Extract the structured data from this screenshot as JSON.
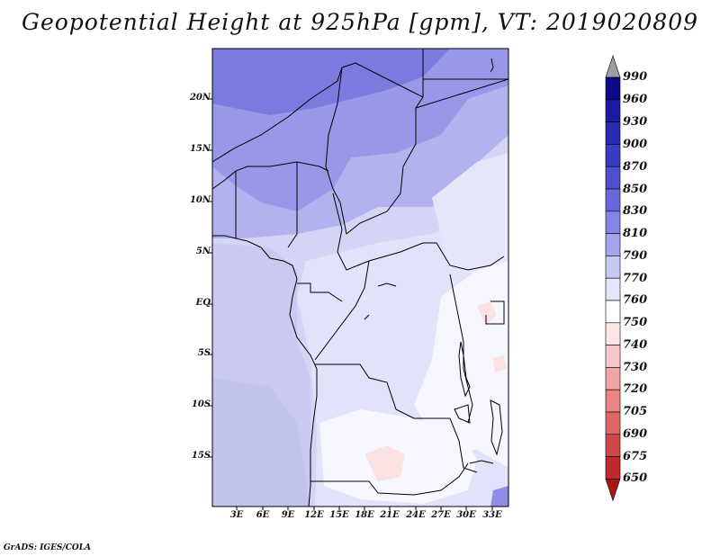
{
  "title": "Geopotential Height at 925hPa [gpm], VT: 2019020809",
  "footer": "GrADS: IGES/COLA",
  "map": {
    "variable": "Geopotential Height",
    "level": "925hPa",
    "units": "gpm",
    "valid_time": "2019020809",
    "lat_ticks": [
      "20N",
      "15N",
      "10N",
      "5N",
      "EQ",
      "5S",
      "10S",
      "15S"
    ],
    "lon_ticks": [
      "3E",
      "6E",
      "9E",
      "12E",
      "15E",
      "18E",
      "21E",
      "24E",
      "27E",
      "30E",
      "33E"
    ]
  },
  "colorbar": {
    "labels": [
      "990",
      "960",
      "930",
      "900",
      "870",
      "850",
      "830",
      "810",
      "790",
      "770",
      "760",
      "750",
      "740",
      "730",
      "720",
      "705",
      "690",
      "675",
      "650"
    ],
    "colors": [
      "#9aa0a6",
      "#0d0a8a",
      "#1c1aa0",
      "#2c2bb3",
      "#3b3bc3",
      "#4f4fd0",
      "#6767db",
      "#8484e4",
      "#a4a4ec",
      "#c7c7f3",
      "#e6e6fa",
      "#ffffff",
      "#fde6e6",
      "#f9c7c7",
      "#f3a4a4",
      "#ec8484",
      "#e06565",
      "#d24848",
      "#c02a2a",
      "#a81515"
    ]
  }
}
